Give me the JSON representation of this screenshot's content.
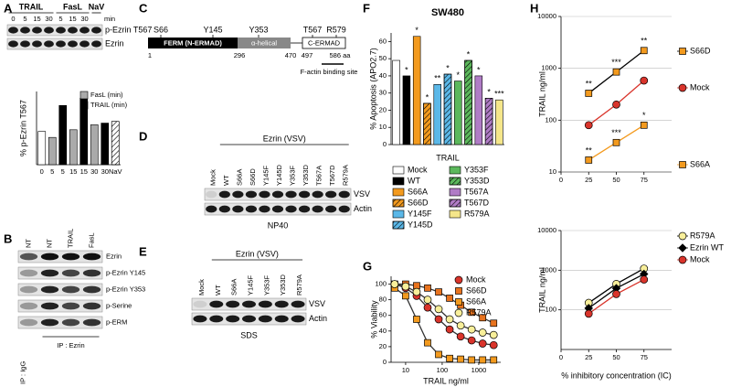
{
  "panels": {
    "a": {
      "letter": "A",
      "treatments": [
        "TRAIL",
        "FasL",
        "NaV"
      ],
      "lanes": [
        "0",
        "5",
        "15",
        "30",
        "5",
        "15",
        "30"
      ],
      "unit": "min",
      "blots": [
        "p-Ezrin T567",
        "Ezrin"
      ]
    },
    "b": {
      "letter": "B",
      "lanes": [
        "NT",
        "NT",
        "TRAIL",
        "FasL"
      ],
      "blots": [
        "Ezrin",
        "p-Ezrin Y145",
        "p-Ezrin Y353",
        "p-Serine",
        "p-ERM"
      ],
      "ip": [
        "IP : IgG",
        "IP : Ezrin"
      ]
    },
    "c": {
      "letter": "C",
      "sites": [
        "S66",
        "Y145",
        "Y353",
        "T567",
        "R579"
      ],
      "domains": [
        "FERM (N-ERMAD)",
        "α-helical",
        "C-ERMAD"
      ],
      "positions": [
        "1",
        "296",
        "470",
        "497",
        "586 aa"
      ],
      "note": "F-actin binding site"
    },
    "d": {
      "letter": "D",
      "header": "Ezrin (VSV)",
      "lanes": [
        "Mock",
        "WT",
        "S66A",
        "S66D",
        "Y145F",
        "Y145D",
        "Y353F",
        "Y353D",
        "T567A",
        "T567D",
        "R579A"
      ],
      "blots": [
        "VSV",
        "Actin"
      ],
      "lysis": "NP40"
    },
    "e": {
      "letter": "E",
      "header": "Ezrin (VSV)",
      "lanes": [
        "Mock",
        "WT",
        "S66A",
        "Y145F",
        "Y353F",
        "Y353D",
        "R579A"
      ],
      "blots": [
        "VSV",
        "Actin"
      ],
      "lysis": "SDS"
    },
    "f": {
      "letter": "F"
    },
    "g": {
      "letter": "G"
    },
    "h": {
      "letter": "H"
    }
  },
  "chart_data": [
    {
      "type": "bar",
      "ylabel": "% p-Ezrin T567",
      "categories": [
        "0",
        "5",
        "5",
        "15",
        "15",
        "30",
        "30",
        "NaV"
      ],
      "values": [
        100,
        82,
        178,
        105,
        200,
        120,
        125,
        130
      ],
      "colors": [
        "#ffffff",
        "#aaaaaa",
        "#000000",
        "#aaaaaa",
        "#000000",
        "#aaaaaa",
        "#000000",
        "#ffffff"
      ],
      "hatched": [
        false,
        false,
        false,
        false,
        false,
        false,
        false,
        true
      ],
      "ylim": [
        0,
        220
      ],
      "legend": [
        {
          "name": "FasL (min)",
          "color": "#aaaaaa"
        },
        {
          "name": "TRAIL (min)",
          "color": "#000000"
        }
      ]
    },
    {
      "type": "bar",
      "title": "SW480",
      "ylabel": "% Apoptosis (APO2.7)",
      "xlabel": "TRAIL",
      "categories": [
        "Mock",
        "WT",
        "S66A",
        "S66D",
        "Y145F",
        "Y145D",
        "Y353F",
        "Y353D",
        "T567A",
        "T567D",
        "R579A"
      ],
      "values": [
        49,
        40,
        63,
        24,
        35,
        41,
        37,
        49,
        40,
        27,
        26
      ],
      "colors": [
        "#ffffff",
        "#000000",
        "#f39a1e",
        "#f39a1e",
        "#5bb8e8",
        "#5bb8e8",
        "#5cb85c",
        "#5cb85c",
        "#b07cc6",
        "#b07cc6",
        "#f5e68a"
      ],
      "hatched": [
        false,
        false,
        false,
        true,
        false,
        true,
        false,
        true,
        false,
        true,
        false
      ],
      "significance": [
        null,
        "*",
        "*",
        "*",
        "**",
        "*",
        "*",
        "*",
        "*",
        "*",
        "***"
      ],
      "ylim": [
        0,
        65
      ],
      "yticks": [
        0,
        10,
        20,
        30,
        40,
        50,
        60
      ],
      "legend": "below"
    },
    {
      "type": "line",
      "ylabel": "% Viability",
      "xlabel": "TRAIL ng/ml",
      "xscale": "log",
      "x": [
        5,
        10,
        20,
        40,
        80,
        160,
        320,
        640,
        1280,
        2560
      ],
      "xlim": [
        4,
        4000
      ],
      "xticks": [
        10,
        100,
        1000
      ],
      "ylim": [
        0,
        110
      ],
      "yticks": [
        0,
        20,
        40,
        60,
        80,
        100
      ],
      "series": [
        {
          "name": "Mock",
          "color": "#d9342b",
          "line_color": "#333333",
          "marker": "circle",
          "values": [
            100,
            95,
            85,
            70,
            55,
            42,
            33,
            28,
            24,
            22
          ]
        },
        {
          "name": "S66D",
          "color": "#e8731e",
          "line_color": "#333333",
          "marker": "square",
          "values": [
            100,
            100,
            98,
            95,
            90,
            82,
            73,
            64,
            57,
            50
          ]
        },
        {
          "name": "S66A",
          "color": "#f39a1e",
          "line_color": "#333333",
          "marker": "square",
          "values": [
            95,
            85,
            55,
            25,
            10,
            5,
            4,
            3,
            3,
            3
          ]
        },
        {
          "name": "R579A",
          "color": "#f8ef9a",
          "line_color": "#333333",
          "marker": "circle",
          "values": [
            100,
            97,
            90,
            80,
            68,
            55,
            47,
            42,
            38,
            35
          ]
        }
      ]
    },
    {
      "type": "line",
      "ylabel": "TRAIL ng/ml",
      "yscale": "log",
      "grid": true,
      "x": [
        25,
        50,
        75
      ],
      "xlim": [
        0,
        100
      ],
      "xticks": [
        0,
        25,
        50,
        75
      ],
      "ylim": [
        10,
        10000
      ],
      "yticks": [
        10,
        100,
        1000,
        10000
      ],
      "series": [
        {
          "name": "S66D",
          "color": "#f39a1e",
          "line_color": "#000000",
          "marker": "square",
          "values": [
            330,
            850,
            2200
          ],
          "significance": [
            "**",
            "***",
            "**"
          ]
        },
        {
          "name": "Mock",
          "color": "#d9342b",
          "line_color": "#d9342b",
          "marker": "circle",
          "values": [
            80,
            200,
            580
          ]
        },
        {
          "name": "S66A",
          "color": "#f39a1e",
          "line_color": "#f39a1e",
          "marker": "square",
          "values": [
            17,
            37,
            80
          ],
          "significance": [
            "**",
            "***",
            "*"
          ]
        }
      ]
    },
    {
      "type": "line",
      "ylabel": "TRAIL ng/ml",
      "xlabel": "% inhibitory concentration (IC)",
      "yscale": "log",
      "grid": true,
      "x": [
        25,
        50,
        75
      ],
      "xlim": [
        0,
        100
      ],
      "xticks": [
        0,
        25,
        50,
        75
      ],
      "ylim": [
        10,
        10000
      ],
      "yticks": [
        100,
        1000,
        10000
      ],
      "series": [
        {
          "name": "R579A",
          "color": "#f8ef9a",
          "line_color": "#000000",
          "marker": "circle",
          "values": [
            150,
            450,
            1100
          ]
        },
        {
          "name": "Ezrin WT",
          "color": "#000000",
          "line_color": "#000000",
          "marker": "diamond",
          "values": [
            110,
            350,
            800
          ]
        },
        {
          "name": "Mock",
          "color": "#d9342b",
          "line_color": "#d9342b",
          "marker": "circle",
          "values": [
            80,
            250,
            580
          ]
        }
      ]
    }
  ]
}
